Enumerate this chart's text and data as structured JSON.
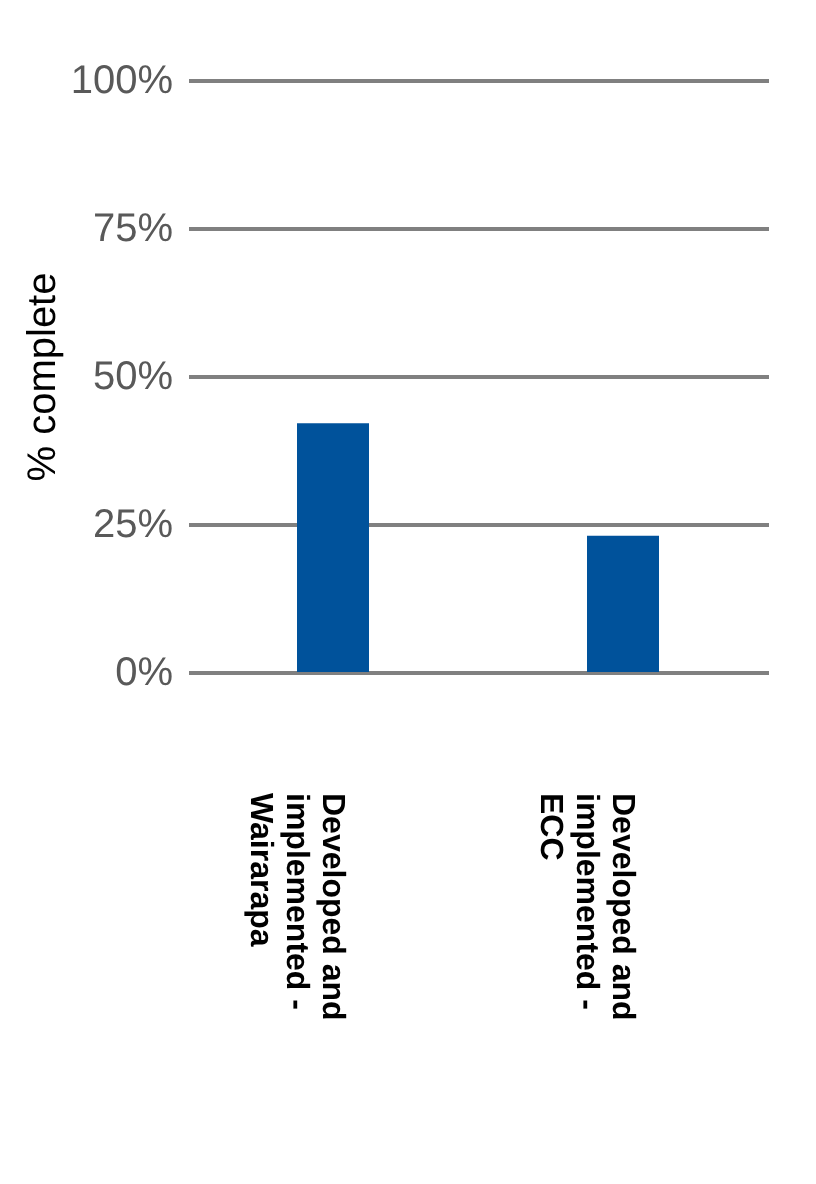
{
  "chart_data": {
    "type": "bar",
    "ylabel": "% complete",
    "categories": [
      "Developed and implemented - Wairarapa",
      "Developed and implemented - ECC"
    ],
    "values": [
      42,
      23
    ],
    "color": "#00529b",
    "ylim": [
      0,
      100
    ],
    "yticks": [
      {
        "value": 0,
        "label": "0%"
      },
      {
        "value": 25,
        "label": "25%"
      },
      {
        "value": 50,
        "label": "50%"
      },
      {
        "value": 75,
        "label": "75%"
      },
      {
        "value": 100,
        "label": "100%"
      }
    ],
    "grid": "y"
  }
}
